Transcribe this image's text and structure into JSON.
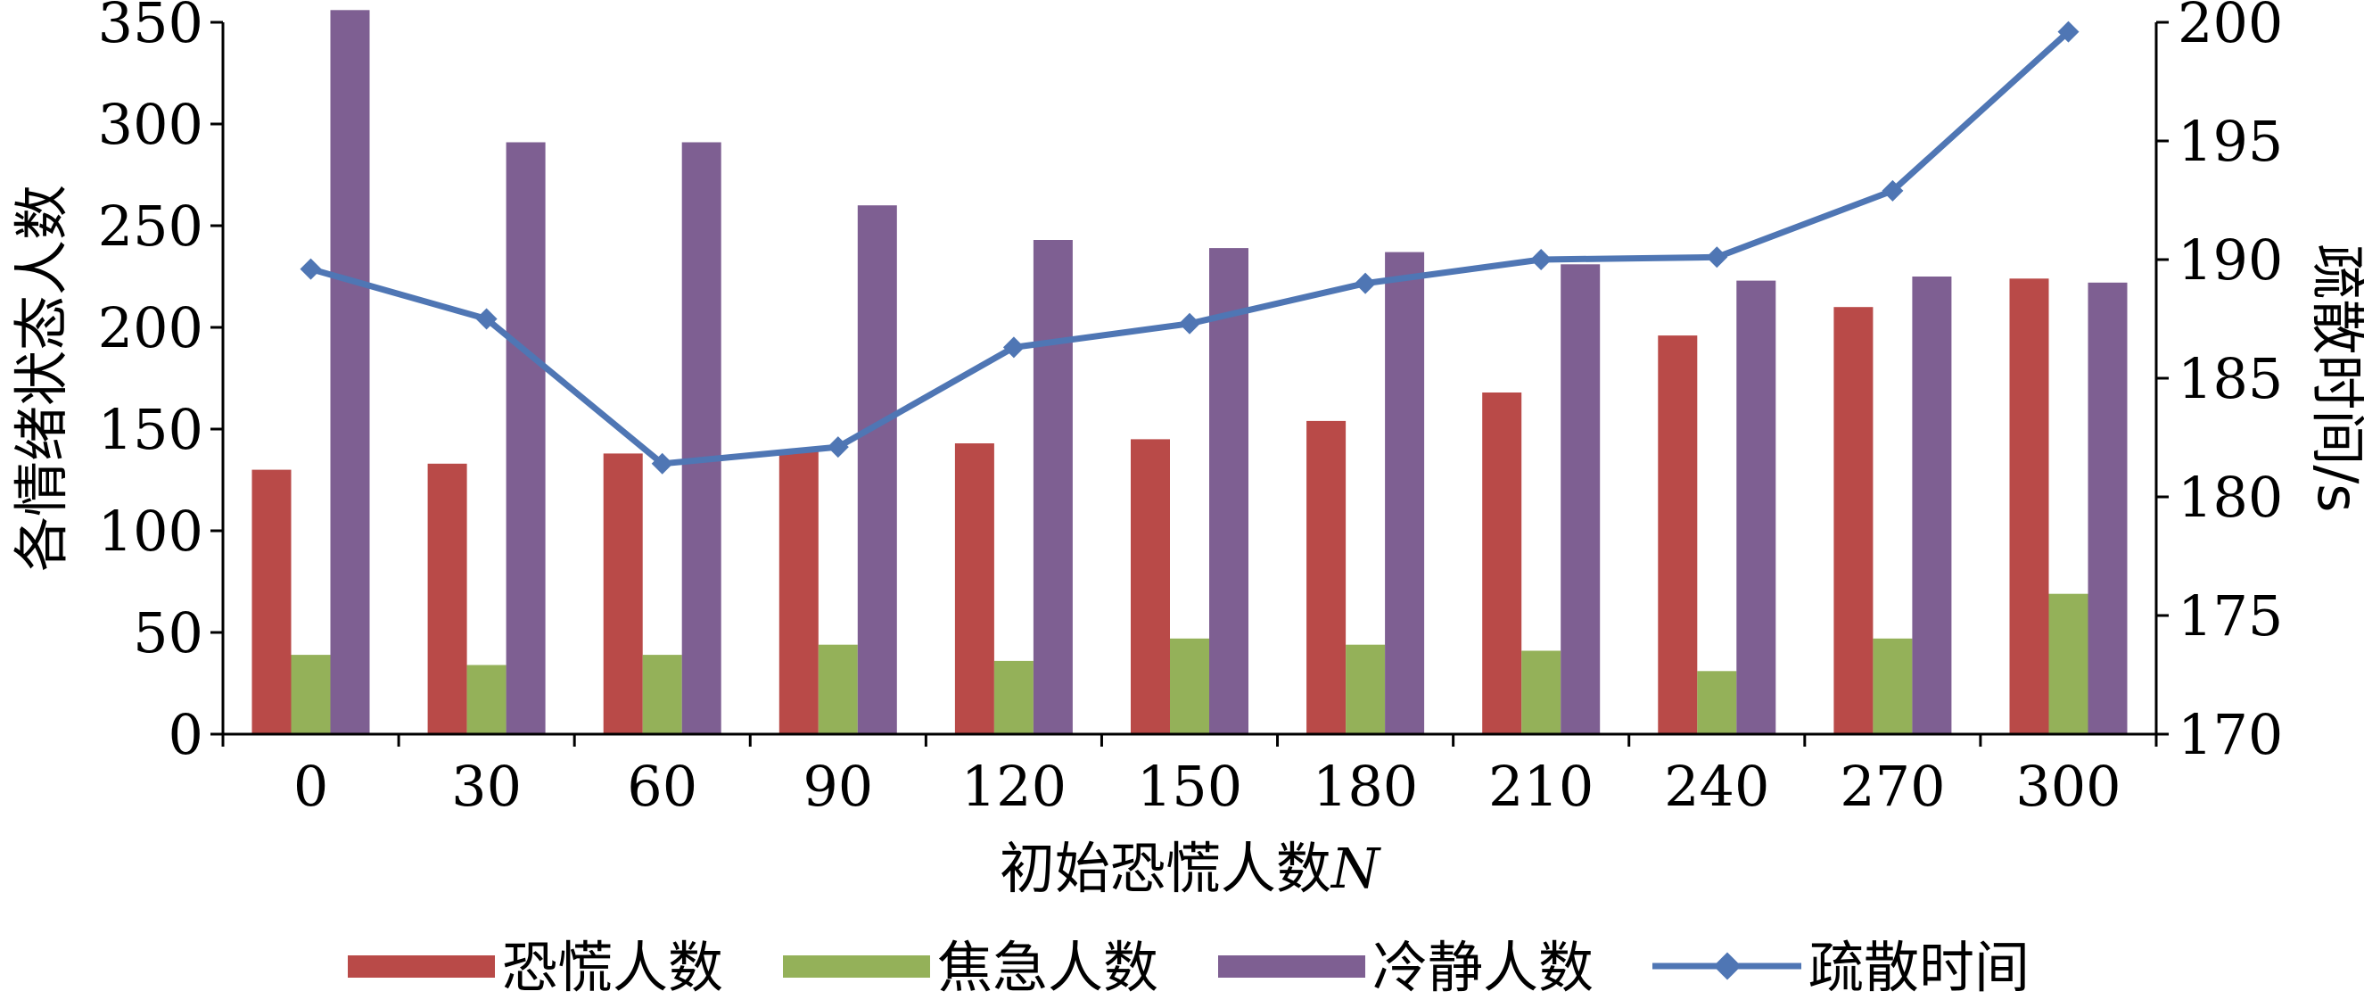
{
  "chart_data": {
    "type": "bar",
    "categories": [
      "0",
      "30",
      "60",
      "90",
      "120",
      "150",
      "180",
      "210",
      "240",
      "270",
      "300"
    ],
    "series": [
      {
        "name": "恐慌人数",
        "type": "bar",
        "axis": "left",
        "color": "#b94a48",
        "values": [
          130,
          133,
          138,
          139,
          143,
          145,
          154,
          168,
          196,
          210,
          224
        ]
      },
      {
        "name": "焦急人数",
        "type": "bar",
        "axis": "left",
        "color": "#94b159",
        "values": [
          39,
          34,
          39,
          44,
          36,
          47,
          44,
          41,
          31,
          47,
          69
        ]
      },
      {
        "name": "冷静人数",
        "type": "bar",
        "axis": "left",
        "color": "#7e5f92",
        "values": [
          356,
          291,
          291,
          260,
          243,
          239,
          237,
          231,
          223,
          225,
          222
        ]
      },
      {
        "name": "疏散时间",
        "type": "line",
        "axis": "right",
        "color": "#4f76b4",
        "marker": "diamond",
        "values": [
          189.6,
          187.5,
          181.4,
          182.1,
          186.3,
          187.3,
          189.0,
          190.0,
          190.1,
          192.9,
          199.6
        ]
      }
    ],
    "xlabel_text": "初始恐慌人数",
    "xlabel_var": "N",
    "ylabel": "各情绪状态人数",
    "y2label": "疏散时间/s",
    "ylim": [
      0,
      350
    ],
    "yticks": [
      "0",
      "50",
      "100",
      "150",
      "200",
      "250",
      "300",
      "350"
    ],
    "y2lim": [
      170,
      200
    ],
    "y2ticks": [
      "170",
      "175",
      "180",
      "185",
      "190",
      "195",
      "200"
    ],
    "grid": false,
    "legend_position": "bottom"
  }
}
